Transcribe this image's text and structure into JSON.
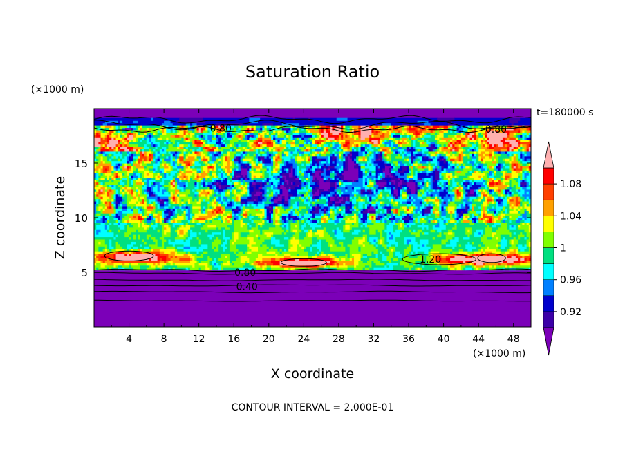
{
  "chart_data": {
    "type": "heatmap",
    "title": "Saturation Ratio",
    "xlabel": "X coordinate",
    "ylabel": "Z coordinate",
    "x_unit": "(×1000 m)",
    "y_unit": "(×1000 m)",
    "time_label": "t=180000 s",
    "footer": "CONTOUR INTERVAL = 2.000E-01",
    "xlim": [
      0,
      50
    ],
    "ylim": [
      0,
      20
    ],
    "x_ticks": [
      4,
      8,
      12,
      16,
      20,
      24,
      28,
      32,
      36,
      40,
      44,
      48
    ],
    "y_ticks": [
      5,
      10,
      15
    ],
    "colorbar": {
      "levels": [
        0.9,
        0.92,
        0.94,
        0.96,
        0.98,
        1.0,
        1.02,
        1.04,
        1.06,
        1.08,
        1.1
      ],
      "tick_labels": [
        "0.92",
        "0.96",
        "1",
        "1.04",
        "1.08"
      ],
      "tick_values": [
        0.92,
        0.96,
        1.0,
        1.04,
        1.08
      ],
      "colors": [
        "#7b00b8",
        "#3c00a8",
        "#0000cc",
        "#0080ff",
        "#00ffff",
        "#00e080",
        "#80ff00",
        "#ffff00",
        "#ffa000",
        "#ff4000",
        "#ff0000",
        "#ffb0b0"
      ]
    },
    "contour_labels": [
      {
        "text": "0.80",
        "x": 14.5,
        "z": 18.2
      },
      {
        "text": "0.80",
        "x": 46.0,
        "z": 18.1
      },
      {
        "text": "0.80",
        "x": 17.3,
        "z": 5.0
      },
      {
        "text": "0.40",
        "x": 17.5,
        "z": 3.7
      },
      {
        "text": "1.20",
        "x": 38.5,
        "z": 6.2
      }
    ]
  }
}
